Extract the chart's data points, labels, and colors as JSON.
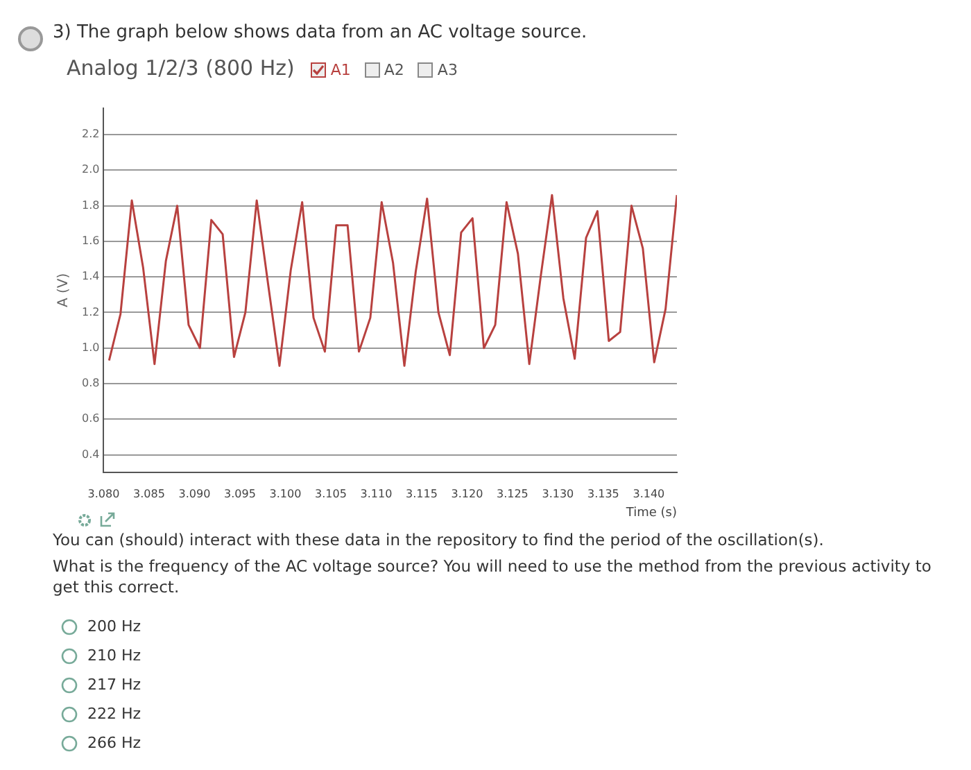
{
  "chart_data": {
    "type": "line",
    "title": "3) The graph below shows data from an AC voltage source.",
    "subtitle": "Analog 1/2/3 (800 Hz)",
    "xlabel": "Time (s)",
    "ylabel": "A (V)",
    "annotations": [
      "A2",
      "A3",
      "You can (should) interact with these data in the repository to find the period of the oscillation(s).",
      "What is the frequency of the AC voltage source? You will need to use the method from the previous activity to get this correct.",
      "200 Hz",
      "210 Hz",
      "217 Hz",
      "222 Hz",
      "266 Hz"
    ],
    "x": [
      3.0806,
      3.08185,
      3.0831,
      3.08435,
      3.0856,
      3.08685,
      3.0881,
      3.08935,
      3.0906,
      3.09185,
      3.0931,
      3.09435,
      3.0956,
      3.09685,
      3.0981,
      3.09935,
      3.1006,
      3.10185,
      3.1031,
      3.10435,
      3.1056,
      3.10685,
      3.1081,
      3.10935,
      3.1106,
      3.11185,
      3.1131,
      3.11435,
      3.1156,
      3.11685,
      3.1181,
      3.11935,
      3.1206,
      3.12185,
      3.1231,
      3.12435,
      3.1256,
      3.12685,
      3.1281,
      3.12935,
      3.1306,
      3.13185,
      3.1331,
      3.13435,
      3.1356,
      3.13685,
      3.1381,
      3.13935,
      3.1406,
      3.14185,
      3.1431
    ],
    "series": [
      {
        "name": "A1",
        "color": "#b8413f",
        "values": [
          0.93,
          1.19,
          1.83,
          1.45,
          0.91,
          1.49,
          1.8,
          1.13,
          1.0,
          1.72,
          1.64,
          0.95,
          1.2,
          1.83,
          1.36,
          0.9,
          1.44,
          1.82,
          1.17,
          0.98,
          1.69,
          1.69,
          0.98,
          1.17,
          1.82,
          1.48,
          0.9,
          1.43,
          1.84,
          1.2,
          0.96,
          1.65,
          1.73,
          1.0,
          1.13,
          1.82,
          1.53,
          0.91,
          1.4,
          1.86,
          1.28,
          0.94,
          1.62,
          1.77,
          1.04,
          1.09,
          1.8,
          1.56,
          0.92,
          1.22,
          1.86
        ]
      }
    ],
    "xlim": [
      3.08,
      3.1431
    ],
    "xticks": [
      {
        "value": 3.08,
        "label": "3.080"
      },
      {
        "value": 3.085,
        "label": "3.085"
      },
      {
        "value": 3.09,
        "label": "3.090"
      },
      {
        "value": 3.095,
        "label": "3.095"
      },
      {
        "value": 3.1,
        "label": "3.100"
      },
      {
        "value": 3.105,
        "label": "3.105"
      },
      {
        "value": 3.11,
        "label": "3.110"
      },
      {
        "value": 3.115,
        "label": "3.115"
      },
      {
        "value": 3.12,
        "label": "3.120"
      },
      {
        "value": 3.125,
        "label": "3.125"
      },
      {
        "value": 3.13,
        "label": "3.130"
      },
      {
        "value": 3.135,
        "label": "3.135"
      },
      {
        "value": 3.14,
        "label": "3.140"
      }
    ],
    "ylim": [
      0.3,
      2.35
    ],
    "yticks": [
      0.4,
      0.6,
      0.8,
      {
        "value": 1,
        "label": "1.0"
      },
      1.2,
      1.4,
      1.6,
      1.8,
      {
        "value": 2,
        "label": "2.0"
      },
      2.2
    ],
    "grid": "y",
    "legend": "top left",
    "marker": "none",
    "line_style": "solid"
  }
}
